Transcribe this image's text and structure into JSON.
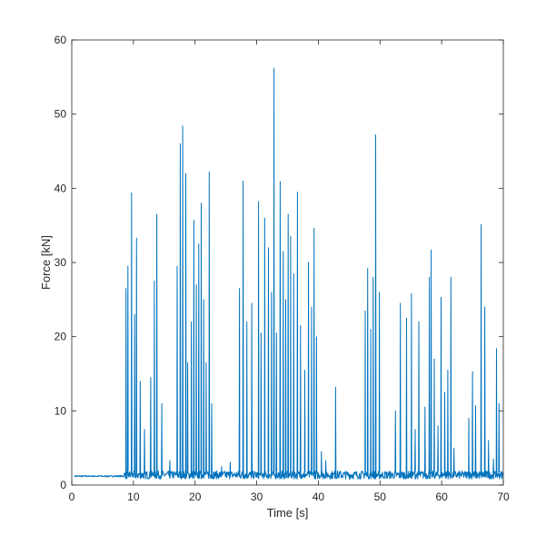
{
  "chart_data": {
    "type": "line",
    "title": "",
    "xlabel": "Time [s]",
    "ylabel": "Force [kN]",
    "xlim": [
      0,
      70
    ],
    "ylim": [
      0,
      60
    ],
    "xticks": [
      "0",
      "10",
      "20",
      "30",
      "40",
      "50",
      "60",
      "70"
    ],
    "yticks": [
      "0",
      "10",
      "20",
      "30",
      "40",
      "50",
      "60"
    ],
    "grid": false,
    "legend": "none",
    "baseline": 1.2,
    "series": [
      {
        "color": "#0072BD",
        "spikes": [
          {
            "x": 8.8,
            "y": 26.5
          },
          {
            "x": 9.1,
            "y": 29.5
          },
          {
            "x": 9.7,
            "y": 39.4
          },
          {
            "x": 10.2,
            "y": 23.0
          },
          {
            "x": 10.5,
            "y": 33.3
          },
          {
            "x": 11.1,
            "y": 14.0
          },
          {
            "x": 11.8,
            "y": 7.5
          },
          {
            "x": 12.8,
            "y": 14.5
          },
          {
            "x": 13.4,
            "y": 27.5
          },
          {
            "x": 13.8,
            "y": 36.5
          },
          {
            "x": 14.6,
            "y": 11.0
          },
          {
            "x": 15.9,
            "y": 3.3
          },
          {
            "x": 17.1,
            "y": 29.5
          },
          {
            "x": 17.6,
            "y": 46.0
          },
          {
            "x": 18.0,
            "y": 48.4
          },
          {
            "x": 18.5,
            "y": 42.0
          },
          {
            "x": 18.8,
            "y": 16.5
          },
          {
            "x": 19.4,
            "y": 22.0
          },
          {
            "x": 19.8,
            "y": 35.7
          },
          {
            "x": 20.2,
            "y": 27.0
          },
          {
            "x": 20.6,
            "y": 32.5
          },
          {
            "x": 21.0,
            "y": 38.0
          },
          {
            "x": 21.4,
            "y": 25.0
          },
          {
            "x": 21.8,
            "y": 16.5
          },
          {
            "x": 22.3,
            "y": 42.2
          },
          {
            "x": 22.7,
            "y": 11.0
          },
          {
            "x": 24.3,
            "y": 2.5
          },
          {
            "x": 25.7,
            "y": 3.1
          },
          {
            "x": 27.2,
            "y": 26.5
          },
          {
            "x": 27.8,
            "y": 41.0
          },
          {
            "x": 28.4,
            "y": 22.0
          },
          {
            "x": 29.2,
            "y": 24.5
          },
          {
            "x": 30.3,
            "y": 38.2
          },
          {
            "x": 30.7,
            "y": 20.5
          },
          {
            "x": 31.3,
            "y": 36.0
          },
          {
            "x": 31.9,
            "y": 32.0
          },
          {
            "x": 32.4,
            "y": 26.0
          },
          {
            "x": 32.8,
            "y": 56.2
          },
          {
            "x": 33.2,
            "y": 20.5
          },
          {
            "x": 33.8,
            "y": 40.9
          },
          {
            "x": 34.3,
            "y": 31.5
          },
          {
            "x": 34.7,
            "y": 25.0
          },
          {
            "x": 35.1,
            "y": 36.5
          },
          {
            "x": 35.5,
            "y": 33.5
          },
          {
            "x": 36.0,
            "y": 28.5
          },
          {
            "x": 36.6,
            "y": 39.5
          },
          {
            "x": 37.1,
            "y": 21.5
          },
          {
            "x": 37.8,
            "y": 15.5
          },
          {
            "x": 38.4,
            "y": 30.0
          },
          {
            "x": 38.9,
            "y": 24.0
          },
          {
            "x": 39.3,
            "y": 34.6
          },
          {
            "x": 39.7,
            "y": 20.0
          },
          {
            "x": 40.5,
            "y": 4.5
          },
          {
            "x": 41.2,
            "y": 3.3
          },
          {
            "x": 42.8,
            "y": 13.2
          },
          {
            "x": 47.6,
            "y": 23.5
          },
          {
            "x": 48.0,
            "y": 29.2
          },
          {
            "x": 48.5,
            "y": 21.0
          },
          {
            "x": 48.9,
            "y": 28.0
          },
          {
            "x": 49.3,
            "y": 47.2
          },
          {
            "x": 49.9,
            "y": 26.0
          },
          {
            "x": 52.5,
            "y": 10.0
          },
          {
            "x": 53.3,
            "y": 24.5
          },
          {
            "x": 54.3,
            "y": 22.5
          },
          {
            "x": 55.1,
            "y": 25.8
          },
          {
            "x": 55.7,
            "y": 7.5
          },
          {
            "x": 56.3,
            "y": 22.0
          },
          {
            "x": 57.3,
            "y": 10.5
          },
          {
            "x": 58.0,
            "y": 28.0
          },
          {
            "x": 58.3,
            "y": 31.7
          },
          {
            "x": 58.8,
            "y": 17.0
          },
          {
            "x": 59.4,
            "y": 8.0
          },
          {
            "x": 59.9,
            "y": 25.3
          },
          {
            "x": 60.5,
            "y": 12.5
          },
          {
            "x": 61.0,
            "y": 15.5
          },
          {
            "x": 61.5,
            "y": 28.0
          },
          {
            "x": 62.0,
            "y": 5.0
          },
          {
            "x": 64.4,
            "y": 9.0
          },
          {
            "x": 65.0,
            "y": 15.3
          },
          {
            "x": 65.5,
            "y": 10.7
          },
          {
            "x": 66.4,
            "y": 35.1
          },
          {
            "x": 67.0,
            "y": 24.0
          },
          {
            "x": 67.6,
            "y": 6.0
          },
          {
            "x": 68.4,
            "y": 3.5
          },
          {
            "x": 68.9,
            "y": 18.4
          },
          {
            "x": 69.3,
            "y": 11.0
          }
        ]
      }
    ]
  }
}
